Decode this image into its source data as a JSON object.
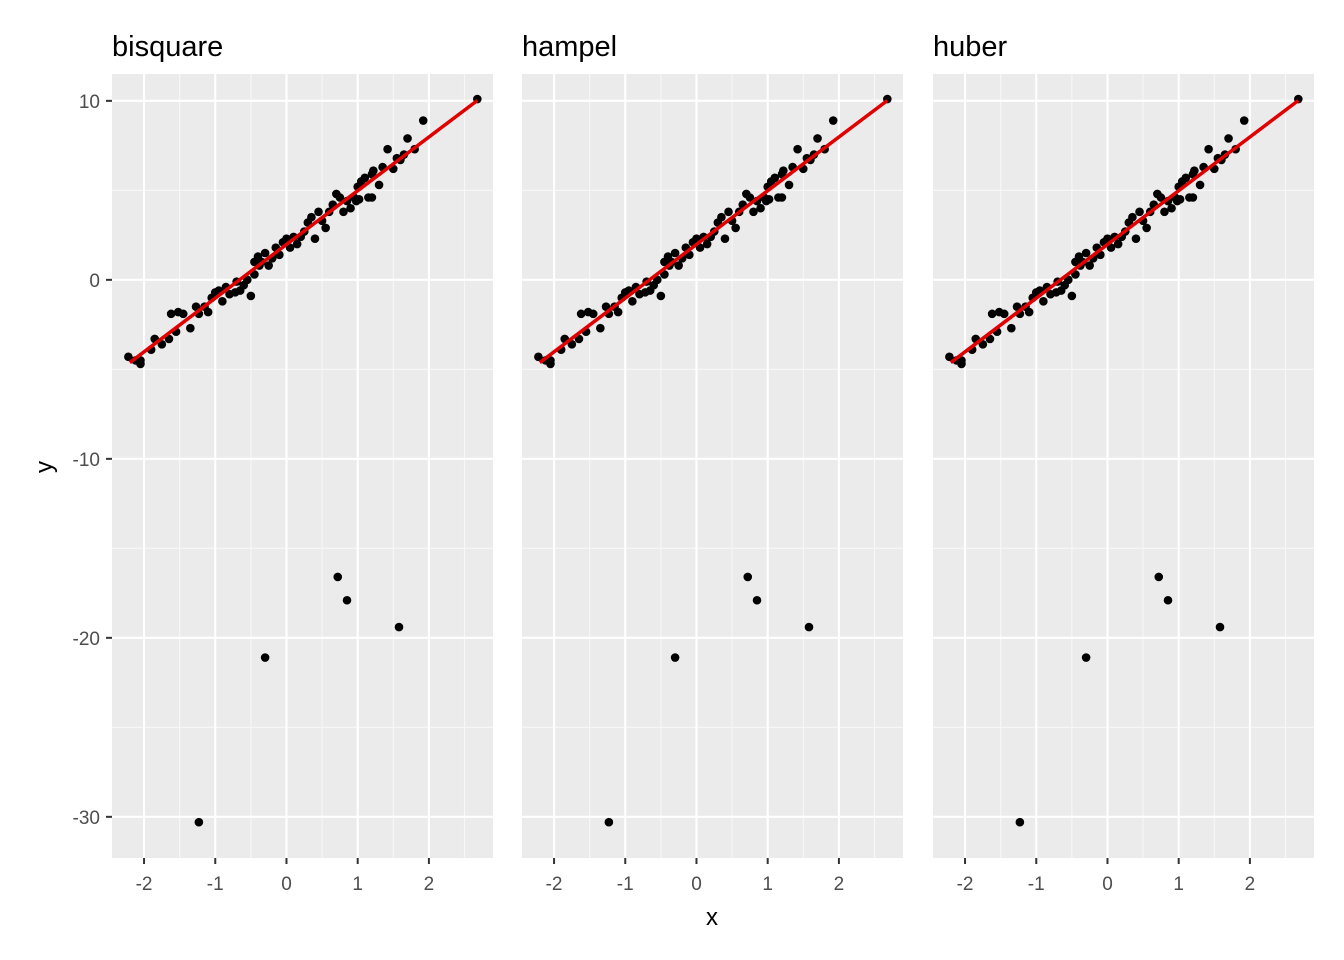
{
  "chart_data": {
    "type": "scatter",
    "facets": [
      "bisquare",
      "hampel",
      "huber"
    ],
    "xlabel": "x",
    "ylabel": "y",
    "xlim": [
      -2.45,
      2.9
    ],
    "ylim": [
      -32.3,
      11.5
    ],
    "x_ticks": [
      -2,
      -1,
      0,
      1,
      2
    ],
    "y_ticks": [
      10,
      0,
      -10,
      -20,
      -30
    ],
    "x_tick_labels": [
      "-2",
      "-1",
      "0",
      "1",
      "2"
    ],
    "y_tick_labels": [
      "10",
      "0",
      "-10",
      "-20",
      "-30"
    ],
    "grid": true,
    "colors": {
      "points": "#000000",
      "fit_line": "#e00000",
      "panel_bg": "#ebebeb",
      "grid": "#ffffff"
    },
    "fit_line": {
      "x": [
        -2.2,
        2.68
      ],
      "y": [
        -4.62,
        10.02
      ]
    },
    "points": {
      "x": [
        -2.22,
        -2.12,
        -2.05,
        -2.05,
        -1.9,
        -1.85,
        -1.75,
        -1.65,
        -1.62,
        -1.55,
        -1.52,
        -1.45,
        -1.35,
        -1.27,
        -1.23,
        -1.15,
        -1.1,
        -1.05,
        -1.0,
        -0.95,
        -0.9,
        -0.85,
        -0.8,
        -0.72,
        -0.7,
        -0.65,
        -0.6,
        -0.55,
        -0.5,
        -0.45,
        -0.4,
        -0.38,
        -0.35,
        -0.3,
        -0.25,
        -0.2,
        -0.15,
        -0.1,
        -0.05,
        0.0,
        0.05,
        0.1,
        0.15,
        0.2,
        0.25,
        0.3,
        0.35,
        0.4,
        0.45,
        0.5,
        0.55,
        0.6,
        0.65,
        0.7,
        0.75,
        0.8,
        0.85,
        0.9,
        0.95,
        1.0,
        1.02,
        1.05,
        1.1,
        1.15,
        1.2,
        1.22,
        1.3,
        1.35,
        1.42,
        1.5,
        1.55,
        1.6,
        1.65,
        1.7,
        1.8,
        1.92,
        2.68,
        1.2,
        -0.45,
        0.98,
        0.72,
        0.85,
        1.58,
        -0.3,
        -1.23
      ],
      "y": [
        -4.3,
        -4.5,
        -4.5,
        -4.7,
        -3.9,
        -3.3,
        -3.6,
        -3.3,
        -1.9,
        -2.9,
        -1.8,
        -1.9,
        -2.7,
        -1.5,
        -1.9,
        -1.5,
        -1.8,
        -1.0,
        -0.7,
        -0.6,
        -1.2,
        -0.4,
        -0.8,
        -0.7,
        -0.1,
        -0.6,
        -0.3,
        0.0,
        -0.9,
        0.3,
        1.3,
        0.8,
        1.0,
        1.5,
        0.8,
        1.2,
        1.8,
        1.4,
        2.1,
        2.3,
        1.8,
        2.4,
        2.0,
        2.4,
        2.7,
        3.2,
        3.5,
        2.3,
        3.8,
        3.3,
        2.9,
        3.8,
        4.2,
        4.8,
        4.6,
        3.8,
        4.4,
        4.0,
        4.6,
        5.2,
        4.5,
        5.5,
        5.7,
        4.6,
        5.9,
        6.1,
        5.3,
        6.3,
        7.3,
        6.2,
        6.8,
        6.7,
        7.0,
        7.9,
        7.3,
        8.9,
        10.1,
        4.6,
        1.0,
        4.4,
        -16.6,
        -17.9,
        -19.4,
        -21.1,
        -30.3
      ]
    }
  }
}
